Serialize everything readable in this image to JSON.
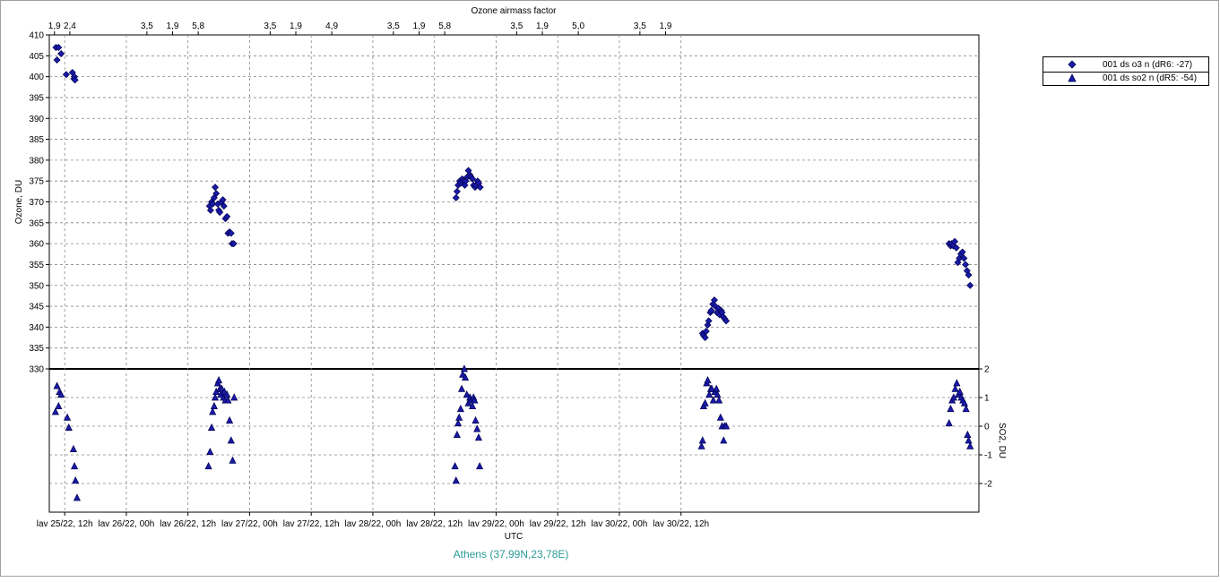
{
  "chart_data": [
    {
      "type": "scatter",
      "title": "Ozone airmass factor",
      "ylabel": "Ozone, DU",
      "xlabel": "UTC",
      "ylim": [
        330,
        410
      ],
      "yticks": [
        330,
        335,
        340,
        345,
        350,
        355,
        360,
        365,
        370,
        375,
        380,
        385,
        390,
        395,
        400,
        405,
        410
      ],
      "xlim_hours_note": "",
      "x_ticks": [
        "lav 25/22, 12h",
        "lav 26/22, 00h",
        "lav 26/22, 12h",
        "lav 27/22, 00h",
        "lav 27/22, 12h",
        "lav 28/22, 00h",
        "lav 28/22, 12h",
        "lav 29/22, 00h",
        "lav 29/22, 12h",
        "lav 30/22, 00h",
        "lav 30/22, 12h"
      ],
      "airmass_ticks": [
        {
          "label": "1,9",
          "x": "lav 25/22, 10h"
        },
        {
          "label": "2,4",
          "x": "lav 25/22, 13h"
        },
        {
          "label": "3,5",
          "x": "lav 26/22, 04h"
        },
        {
          "label": "1,9",
          "x": "lav 26/22, 09h"
        },
        {
          "label": "5,8",
          "x": "lav 26/22, 14h"
        },
        {
          "label": "3,5",
          "x": "lav 27/22, 04h"
        },
        {
          "label": "1,9",
          "x": "lav 27/22, 09h"
        },
        {
          "label": "4,9",
          "x": "lav 27/22, 16h"
        },
        {
          "label": "3,5",
          "x": "lav 28/22, 04h"
        },
        {
          "label": "1,9",
          "x": "lav 28/22, 09h"
        },
        {
          "label": "5,8",
          "x": "lav 28/22, 14h"
        },
        {
          "label": "3,5",
          "x": "lav 29/22, 04h"
        },
        {
          "label": "1,9",
          "x": "lav 29/22, 09h"
        },
        {
          "label": "5,0",
          "x": "lav 29/22, 16h"
        },
        {
          "label": "3,5",
          "x": "lav 30/22, 04h"
        },
        {
          "label": "1,9",
          "x": "lav 30/22, 09h"
        }
      ],
      "series": [
        {
          "name": "001 ds o3  n (dR6: -27)",
          "marker": "diamond",
          "color": "#1a1aa8",
          "x_hours_from_lav25_00h": [
            10.3,
            10.5,
            10.8,
            11.3,
            12.3,
            13.5,
            13.8,
            13.9,
            14.0,
            40.2,
            40.4,
            40.6,
            40.8,
            41.1,
            41.3,
            41.5,
            41.8,
            42.0,
            42.2,
            42.5,
            42.8,
            43.0,
            43.3,
            43.6,
            43.8,
            44.1,
            44.4,
            44.6,
            44.9,
            88.2,
            88.4,
            88.6,
            88.9,
            89.1,
            89.4,
            89.6,
            89.9,
            90.1,
            90.4,
            90.6,
            90.9,
            91.1,
            91.4,
            91.6,
            91.9,
            92.1,
            92.4,
            92.6,
            92.9,
            136.2,
            136.4,
            136.7,
            136.9,
            137.2,
            137.4,
            137.7,
            137.9,
            138.2,
            138.5,
            138.7,
            139.0,
            139.3,
            139.5,
            139.8,
            140.0,
            140.2,
            140.5,
            140.8,
            184.2,
            184.5,
            184.7,
            185.0,
            185.3,
            185.6,
            185.9,
            186.2,
            186.5,
            186.8,
            187.1,
            187.4,
            187.7,
            188.0,
            188.3
          ],
          "values": [
            407.0,
            404.0,
            407.0,
            405.5,
            400.5,
            401.0,
            399.5,
            400.0,
            399.2,
            369.0,
            368.0,
            370.0,
            369.5,
            371.0,
            373.5,
            372.0,
            369.5,
            368.0,
            367.5,
            370.0,
            370.5,
            369.0,
            366.0,
            366.5,
            362.5,
            362.8,
            362.5,
            360.0,
            360.0,
            371.0,
            372.5,
            374.0,
            375.0,
            374.5,
            375.5,
            375.0,
            374.0,
            375.0,
            376.0,
            377.5,
            376.5,
            376.0,
            375.5,
            374.0,
            373.5,
            374.0,
            375.0,
            374.5,
            373.5,
            338.5,
            338.0,
            337.5,
            339.0,
            340.5,
            341.5,
            343.5,
            344.0,
            345.5,
            346.5,
            345.0,
            343.5,
            344.5,
            343.0,
            344.0,
            343.5,
            342.5,
            342.0,
            341.5,
            360.0,
            359.5,
            360.0,
            359.5,
            360.5,
            359.0,
            355.5,
            356.5,
            357.5,
            358.0,
            356.5,
            355.0,
            353.5,
            352.5,
            350.0
          ]
        },
        {
          "name": "001 ds so2 n (dR5: -54)",
          "marker": "triangle",
          "color": "#1a1aa8",
          "ylabel": "SO2, DU",
          "ylim": [
            -3,
            2
          ],
          "yticks": [
            -2,
            -1,
            0,
            1,
            2
          ],
          "x_hours_from_lav25_00h": [
            10.2,
            10.5,
            10.8,
            11.0,
            11.3,
            12.5,
            12.8,
            13.7,
            13.9,
            14.1,
            14.4,
            40.0,
            40.3,
            40.6,
            40.8,
            41.1,
            41.3,
            41.5,
            41.8,
            42.0,
            42.2,
            42.4,
            42.6,
            42.9,
            43.1,
            43.3,
            43.6,
            43.8,
            44.1,
            44.4,
            44.7,
            45.0,
            88.0,
            88.2,
            88.4,
            88.6,
            88.8,
            89.1,
            89.3,
            89.5,
            89.8,
            90.0,
            90.3,
            90.6,
            90.9,
            91.1,
            91.4,
            91.6,
            91.8,
            92.0,
            92.3,
            92.6,
            92.8,
            136.0,
            136.2,
            136.4,
            136.7,
            137.0,
            137.2,
            137.5,
            137.8,
            138.0,
            138.3,
            138.6,
            138.9,
            139.1,
            139.4,
            139.7,
            140.0,
            140.3,
            140.5,
            140.8,
            184.2,
            184.5,
            184.8,
            185.1,
            185.4,
            185.7,
            186.0,
            186.3,
            186.6,
            186.9,
            187.2,
            187.5,
            187.8,
            188.0,
            188.3
          ],
          "values": [
            0.5,
            1.4,
            0.7,
            1.2,
            1.1,
            0.3,
            -0.05,
            -0.8,
            -1.4,
            -1.9,
            -2.5,
            -1.4,
            -0.9,
            -0.05,
            0.5,
            0.7,
            1.0,
            1.2,
            1.5,
            1.6,
            1.3,
            1.1,
            1.3,
            1.0,
            1.2,
            0.9,
            1.1,
            0.9,
            0.2,
            -0.5,
            -1.2,
            1.0,
            -1.4,
            -1.9,
            -0.3,
            0.1,
            0.3,
            0.6,
            1.3,
            1.8,
            2.0,
            1.7,
            1.1,
            0.8,
            1.0,
            0.9,
            0.7,
            1.0,
            0.9,
            0.2,
            -0.1,
            -0.4,
            -1.4,
            -0.7,
            -0.5,
            0.7,
            0.8,
            1.5,
            1.6,
            1.1,
            1.3,
            1.3,
            0.9,
            1.2,
            1.3,
            1.1,
            0.9,
            0.3,
            0.0,
            -0.5,
            0.0,
            0.0,
            0.1,
            0.6,
            0.9,
            1.0,
            1.3,
            1.5,
            1.1,
            1.2,
            1.0,
            0.9,
            0.8,
            0.6,
            -0.3,
            -0.5,
            -0.7
          ]
        }
      ],
      "legend_position": "top-right",
      "grid": true
    }
  ],
  "header": {
    "title": "Ozone airmass factor"
  },
  "axes": {
    "y_left_label": "Ozone, DU",
    "y_right_label": "SO2, DU",
    "x_label": "UTC"
  },
  "legend": {
    "o3_label": "001 ds o3  n (dR6: -27)",
    "so2_label": "001 ds so2 n (dR5: -54)"
  },
  "station": "Athens (37,99N,23,78E)"
}
